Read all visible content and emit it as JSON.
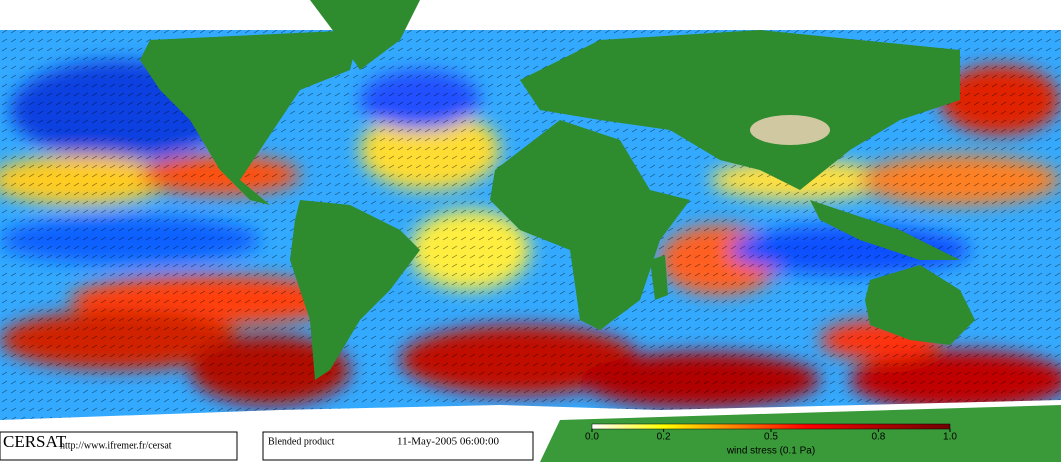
{
  "footer": {
    "logo": "CERSAT",
    "url": "http://www.ifremer.fr/cersat",
    "product": "Blended product",
    "date": "11-May-2005 06:00:00"
  },
  "colorbar": {
    "label": "wind stress (0.1 Pa)",
    "lim": [
      0,
      1
    ],
    "ticks": [
      {
        "value": 0,
        "label": "0.0"
      },
      0.2,
      0.5,
      0.8,
      {
        "value": 1,
        "label": "1.0"
      }
    ],
    "colors": [
      "#ffffff",
      "#ffff00",
      "#ff8000",
      "#ff0000",
      "#b00000",
      "#700000"
    ]
  }
}
